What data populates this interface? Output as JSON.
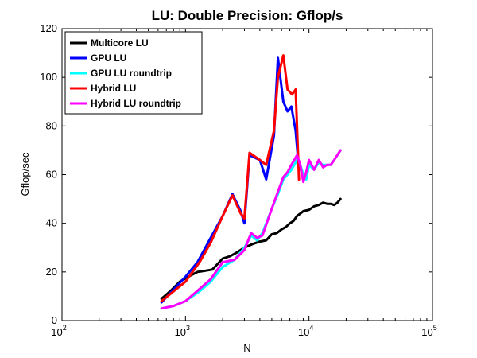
{
  "chart_data": {
    "type": "line",
    "title": "LU: Double Precision:  Gflop/s",
    "xlabel": "N",
    "ylabel": "Gflop/sec",
    "xscale": "log",
    "xlim": [
      100,
      100000
    ],
    "ylim": [
      0,
      120
    ],
    "xticks": [
      {
        "base": "10",
        "exp": "2",
        "value": 100
      },
      {
        "base": "10",
        "exp": "3",
        "value": 1000
      },
      {
        "base": "10",
        "exp": "4",
        "value": 10000
      },
      {
        "base": "10",
        "exp": "5",
        "value": 100000
      }
    ],
    "yticks": [
      "0",
      "20",
      "40",
      "60",
      "80",
      "100",
      "120"
    ],
    "grid": false,
    "legend_position": "top-left",
    "series": [
      {
        "name": "Multicore LU",
        "color": "#000000",
        "x": [
          640,
          750,
          900,
          1050,
          1250,
          1450,
          1650,
          2000,
          2300,
          2600,
          3000,
          3500,
          4000,
          4500,
          5000,
          5500,
          6000,
          6500,
          7000,
          7500,
          8000,
          8500,
          9000,
          10000,
          11000,
          12000,
          13000,
          14000,
          15000,
          16000,
          17000,
          18000
        ],
        "values": [
          9,
          12,
          16,
          18,
          20,
          20.5,
          21,
          25.5,
          26.5,
          28,
          30,
          31.5,
          32.5,
          33,
          35.5,
          36,
          37.5,
          38.5,
          40,
          41,
          43,
          44,
          45,
          45.5,
          47,
          47.5,
          48.5,
          48,
          48,
          47.5,
          48.5,
          50
        ]
      },
      {
        "name": "GPU LU",
        "color": "#0000ff",
        "x": [
          640,
          1000,
          1250,
          1600,
          2000,
          2400,
          2800,
          3000,
          3300,
          4000,
          4500,
          5200,
          5600,
          6200,
          6700,
          7200,
          7800,
          8300
        ],
        "values": [
          7.5,
          18,
          24,
          34,
          43,
          52,
          45,
          40,
          68,
          66,
          58,
          76,
          108,
          90,
          86,
          88,
          78,
          62
        ]
      },
      {
        "name": "GPU LU roundtrip",
        "color": "#00ffff",
        "x": [
          640,
          800,
          1000,
          1300,
          1600,
          2000,
          2500,
          3000,
          3400,
          3800,
          4200,
          5000,
          5600,
          6200,
          6700,
          7200,
          7600,
          8000,
          8500,
          9000,
          9500,
          10000,
          11000,
          12000,
          13000,
          14000,
          15000,
          16000,
          18000
        ],
        "values": [
          5,
          6,
          8,
          12,
          16,
          22,
          25,
          30,
          35,
          33,
          36,
          46,
          52,
          58,
          60,
          62,
          64,
          66,
          64,
          60,
          58,
          64,
          62,
          65,
          64,
          64,
          64,
          66,
          70
        ]
      },
      {
        "name": "Hybrid LU",
        "color": "#ff0000",
        "x": [
          640,
          1000,
          1300,
          1600,
          2000,
          2400,
          2800,
          3000,
          3300,
          4000,
          4500,
          5200,
          5600,
          6200,
          6700,
          7300,
          7800,
          8300
        ],
        "values": [
          8,
          16,
          24,
          32,
          43,
          51.5,
          44,
          42,
          69,
          66,
          64,
          78,
          100,
          109,
          95,
          93,
          95,
          58
        ]
      },
      {
        "name": "Hybrid LU roundtrip",
        "color": "#ff00ff",
        "x": [
          640,
          800,
          1000,
          1300,
          1600,
          2000,
          2500,
          3000,
          3400,
          3800,
          4200,
          5000,
          5600,
          6200,
          6700,
          7200,
          7600,
          8000,
          8500,
          9000,
          9500,
          10000,
          11000,
          12000,
          13000,
          14000,
          15000,
          16000,
          18000
        ],
        "values": [
          5,
          6,
          8,
          13,
          17,
          24,
          25,
          29,
          36,
          34,
          35,
          46,
          53,
          59,
          61,
          64,
          66,
          68,
          64,
          57,
          61,
          66,
          62,
          66,
          63,
          64,
          64,
          66,
          70
        ]
      }
    ]
  }
}
